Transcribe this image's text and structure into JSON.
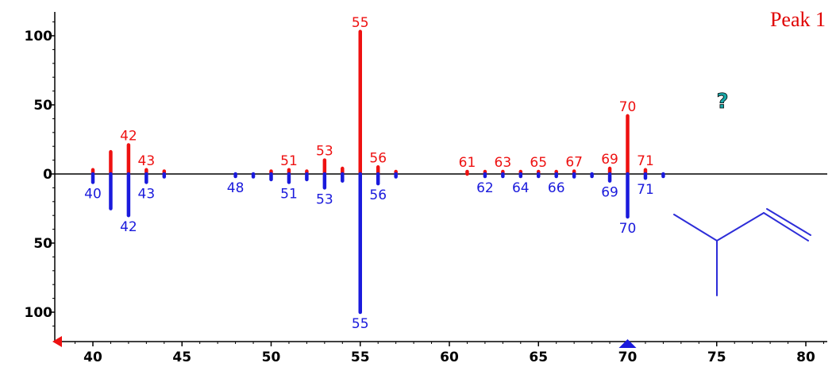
{
  "chart_data": {
    "type": "bar",
    "title": "Peak 1",
    "annotation": "?",
    "xlim": [
      38.2,
      81.8
    ],
    "ylim": [
      -118,
      118
    ],
    "x_ticks": [
      40,
      45,
      50,
      55,
      60,
      65,
      70,
      75,
      80
    ],
    "y_tick_values": [
      100,
      50,
      0,
      -50,
      -100
    ],
    "y_tick_labels": [
      "100",
      "50",
      "0",
      "50",
      "100"
    ],
    "selected_x": 70,
    "colors": {
      "upper": "#ee1111",
      "lower": "#1a1adc"
    },
    "series": [
      {
        "name": "",
        "direction": "up",
        "color": "#ee1111",
        "points": [
          {
            "x": 40,
            "y": 3
          },
          {
            "x": 41,
            "y": 16
          },
          {
            "x": 42,
            "y": 21
          },
          {
            "x": 43,
            "y": 3
          },
          {
            "x": 44,
            "y": 2
          },
          {
            "x": 50,
            "y": 2
          },
          {
            "x": 51,
            "y": 3
          },
          {
            "x": 52,
            "y": 2
          },
          {
            "x": 53,
            "y": 10
          },
          {
            "x": 54,
            "y": 4
          },
          {
            "x": 55,
            "y": 103
          },
          {
            "x": 56,
            "y": 5
          },
          {
            "x": 57,
            "y": 1
          },
          {
            "x": 61,
            "y": 1
          },
          {
            "x": 62,
            "y": 1
          },
          {
            "x": 63,
            "y": 1
          },
          {
            "x": 64,
            "y": 1
          },
          {
            "x": 65,
            "y": 1
          },
          {
            "x": 66,
            "y": 1
          },
          {
            "x": 67,
            "y": 2
          },
          {
            "x": 69,
            "y": 4
          },
          {
            "x": 70,
            "y": 42
          },
          {
            "x": 71,
            "y": 3
          }
        ],
        "labels": [
          42,
          43,
          51,
          53,
          55,
          56,
          61,
          63,
          65,
          67,
          69,
          70,
          71
        ]
      },
      {
        "name": "",
        "direction": "down",
        "color": "#1a1adc",
        "points": [
          {
            "x": 40,
            "y": 6
          },
          {
            "x": 41,
            "y": 25
          },
          {
            "x": 42,
            "y": 30
          },
          {
            "x": 43,
            "y": 6
          },
          {
            "x": 44,
            "y": 2
          },
          {
            "x": 48,
            "y": 1
          },
          {
            "x": 49,
            "y": 2
          },
          {
            "x": 50,
            "y": 4
          },
          {
            "x": 51,
            "y": 6
          },
          {
            "x": 52,
            "y": 4
          },
          {
            "x": 53,
            "y": 10
          },
          {
            "x": 54,
            "y": 5
          },
          {
            "x": 55,
            "y": 100
          },
          {
            "x": 56,
            "y": 7
          },
          {
            "x": 57,
            "y": 2
          },
          {
            "x": 62,
            "y": 1
          },
          {
            "x": 63,
            "y": 1
          },
          {
            "x": 64,
            "y": 1
          },
          {
            "x": 65,
            "y": 1
          },
          {
            "x": 66,
            "y": 1
          },
          {
            "x": 67,
            "y": 2
          },
          {
            "x": 68,
            "y": 1
          },
          {
            "x": 69,
            "y": 5
          },
          {
            "x": 70,
            "y": 31
          },
          {
            "x": 71,
            "y": 3
          },
          {
            "x": 72,
            "y": 1
          }
        ],
        "labels": [
          40,
          42,
          43,
          48,
          51,
          53,
          55,
          56,
          62,
          64,
          66,
          69,
          70,
          71
        ]
      }
    ]
  }
}
